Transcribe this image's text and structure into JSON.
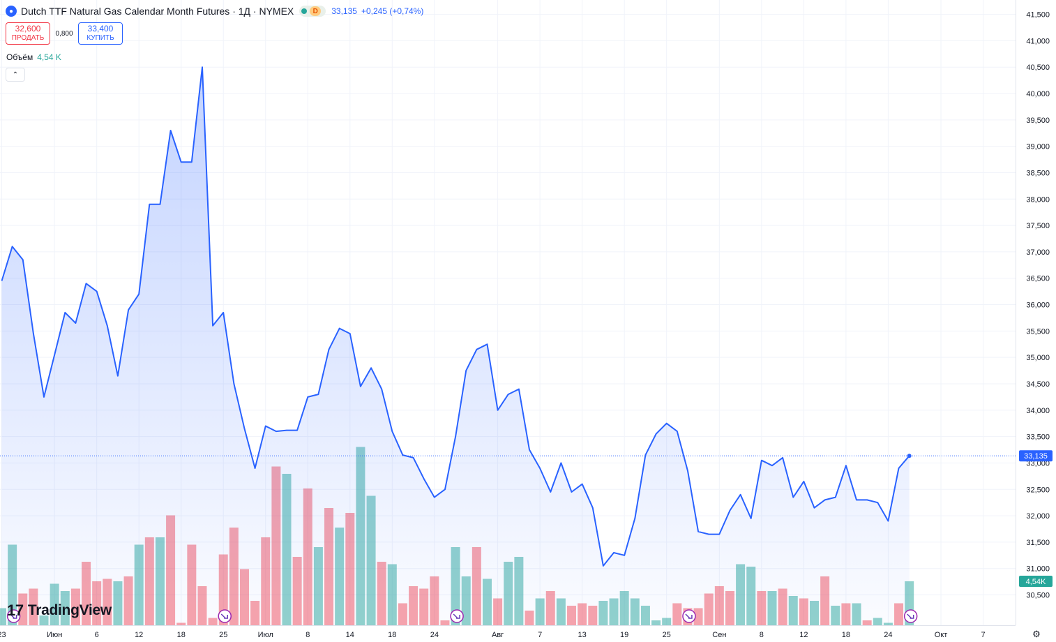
{
  "header": {
    "title": "Dutch TTF Natural Gas Calendar Month Futures · 1Д · NYMEX",
    "flag": "D",
    "last_price": "33,135",
    "change": "+0,245 (+0,74%)"
  },
  "trade": {
    "sell_price": "32,600",
    "sell_label": "ПРОДАТЬ",
    "spread": "0,800",
    "buy_price": "33,400",
    "buy_label": "КУПИТЬ"
  },
  "volume": {
    "label": "Объём",
    "value": "4,54 K"
  },
  "brand": "TradingView",
  "icons": {
    "settings": "gear-icon",
    "collapse": "chevron-up-icon",
    "dividend": "forward-arrow-circle-icon"
  },
  "colors": {
    "line": "#2962ff",
    "vol_up": "#26a69a",
    "vol_down": "#f23645",
    "price_badge": "#2962ff",
    "vol_badge": "#26a69a"
  },
  "chart_data": {
    "type": "line",
    "title": "Dutch TTF Natural Gas Calendar Month Futures",
    "ylim": [
      30150,
      41600
    ],
    "price_ticks": [
      "30,500",
      "31,000",
      "31,500",
      "32,000",
      "32,500",
      "33,000",
      "33,500",
      "34,000",
      "34,500",
      "35,000",
      "35,500",
      "36,000",
      "36,500",
      "37,000",
      "37,500",
      "38,000",
      "38,500",
      "39,000",
      "39,500",
      "40,000",
      "40,500",
      "41,000",
      "41,500"
    ],
    "x_ticks": [
      {
        "label": "23",
        "i": 0
      },
      {
        "label": "Июн",
        "i": 5
      },
      {
        "label": "6",
        "i": 9
      },
      {
        "label": "12",
        "i": 13
      },
      {
        "label": "18",
        "i": 17
      },
      {
        "label": "25",
        "i": 21
      },
      {
        "label": "Июл",
        "i": 25
      },
      {
        "label": "8",
        "i": 29
      },
      {
        "label": "14",
        "i": 33
      },
      {
        "label": "18",
        "i": 37
      },
      {
        "label": "24",
        "i": 41
      },
      {
        "label": "Авг",
        "i": 47
      },
      {
        "label": "7",
        "i": 51
      },
      {
        "label": "13",
        "i": 55
      },
      {
        "label": "19",
        "i": 59
      },
      {
        "label": "25",
        "i": 63
      },
      {
        "label": "Сен",
        "i": 68
      },
      {
        "label": "8",
        "i": 72
      },
      {
        "label": "12",
        "i": 76
      },
      {
        "label": "18",
        "i": 80
      },
      {
        "label": "24",
        "i": 84
      },
      {
        "label": "Окт",
        "i": 89
      },
      {
        "label": "7",
        "i": 93
      }
    ],
    "close": [
      36450,
      37100,
      36850,
      35450,
      34250,
      35050,
      35850,
      35650,
      36400,
      36250,
      35600,
      34650,
      35900,
      36200,
      37900,
      37900,
      39300,
      38700,
      38700,
      40500,
      35600,
      35850,
      34500,
      33650,
      32900,
      33700,
      33600,
      33620,
      33620,
      34250,
      34300,
      35150,
      35550,
      35450,
      34450,
      34800,
      34400,
      33600,
      33150,
      33100,
      32700,
      32350,
      32500,
      33500,
      34750,
      35150,
      35250,
      34000,
      34300,
      34400,
      33250,
      32900,
      32450,
      33000,
      32450,
      32600,
      32150,
      31050,
      31300,
      31250,
      31950,
      33150,
      33550,
      33750,
      33600,
      32850,
      31700,
      31650,
      31650,
      32100,
      32400,
      31950,
      33050,
      32950,
      33100,
      32350,
      32650,
      32150,
      32300,
      32350,
      32950,
      32300,
      32300,
      32250,
      31900,
      32900,
      33135
    ],
    "volume_up": [
      true,
      true,
      false,
      false,
      true,
      true,
      true,
      false,
      false,
      false,
      false,
      true,
      false,
      true,
      false,
      true,
      false,
      false,
      false,
      false,
      false,
      false,
      false,
      false,
      false,
      false,
      false,
      true,
      false,
      false,
      true,
      false,
      true,
      false,
      true,
      true,
      false,
      true,
      false,
      false,
      false,
      false,
      false,
      true,
      true,
      false,
      true,
      false,
      true,
      true,
      false,
      true,
      false,
      true,
      false,
      false,
      false,
      true,
      true,
      true,
      true,
      true,
      true,
      true,
      false,
      false,
      false,
      false,
      false,
      false,
      true,
      true,
      false,
      true,
      false,
      true,
      false,
      true,
      false,
      true,
      false,
      true,
      false,
      true,
      true,
      false,
      true
    ],
    "volume": [
      0.07,
      0.33,
      0.13,
      0.15,
      0.04,
      0.17,
      0.14,
      0.15,
      0.26,
      0.18,
      0.19,
      0.18,
      0.2,
      0.33,
      0.36,
      0.36,
      0.45,
      0.01,
      0.33,
      0.16,
      0.03,
      0.29,
      0.4,
      0.23,
      0.1,
      0.36,
      0.65,
      0.62,
      0.28,
      0.56,
      0.32,
      0.48,
      0.4,
      0.46,
      0.73,
      0.53,
      0.26,
      0.25,
      0.09,
      0.16,
      0.15,
      0.2,
      0.02,
      0.32,
      0.2,
      0.32,
      0.19,
      0.11,
      0.26,
      0.28,
      0.06,
      0.11,
      0.14,
      0.11,
      0.08,
      0.09,
      0.08,
      0.1,
      0.11,
      0.14,
      0.11,
      0.08,
      0.02,
      0.03,
      0.09,
      0.07,
      0.07,
      0.13,
      0.16,
      0.14,
      0.25,
      0.24,
      0.14,
      0.14,
      0.15,
      0.12,
      0.11,
      0.1,
      0.2,
      0.08,
      0.09,
      0.09,
      0.02,
      0.03,
      0.01,
      0.09,
      0.18
    ],
    "volume_ylim": [
      0,
      0.8
    ],
    "dividend_markers_i": [
      1,
      21,
      43,
      65,
      86
    ]
  }
}
